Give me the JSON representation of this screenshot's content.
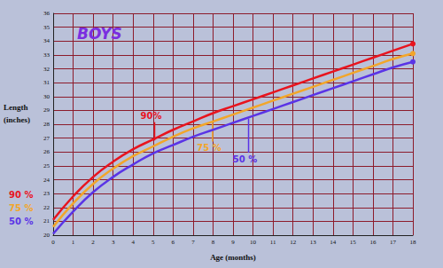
{
  "chart_data": {
    "type": "line",
    "title": "BOYS",
    "xlabel": "Age (months)",
    "ylabel": "Length (inches)",
    "x": [
      0,
      1,
      2,
      3,
      4,
      5,
      6,
      7,
      8,
      9,
      10,
      11,
      12,
      13,
      14,
      15,
      16,
      17,
      18
    ],
    "series": [
      {
        "name": "90 %",
        "color": "#e8141e",
        "values": [
          21.1,
          22.8,
          24.2,
          25.3,
          26.2,
          26.9,
          27.6,
          28.2,
          28.8,
          29.3,
          29.8,
          30.3,
          30.8,
          31.3,
          31.8,
          32.3,
          32.8,
          33.3,
          33.8
        ]
      },
      {
        "name": "75 %",
        "color": "#f2a62a",
        "values": [
          20.6,
          22.3,
          23.7,
          24.8,
          25.7,
          26.4,
          27.1,
          27.7,
          28.2,
          28.7,
          29.2,
          29.7,
          30.2,
          30.7,
          31.2,
          31.7,
          32.2,
          32.7,
          33.1
        ]
      },
      {
        "name": "50 %",
        "color": "#5a34e6",
        "values": [
          20.1,
          21.7,
          23.1,
          24.2,
          25.1,
          25.9,
          26.5,
          27.1,
          27.6,
          28.1,
          28.6,
          29.1,
          29.6,
          30.1,
          30.6,
          31.1,
          31.6,
          32.1,
          32.5
        ]
      }
    ],
    "annotations": [
      {
        "text": "90%",
        "series": "90 %",
        "x": 4.9,
        "y": 28.6
      },
      {
        "text": "75 %",
        "series": "75 %",
        "x": 7.8,
        "y": 26.3
      },
      {
        "text": "50 %",
        "series": "50 %",
        "x": 9.6,
        "y": 25.5
      }
    ],
    "xlim": [
      0,
      18
    ],
    "xticks": [
      0,
      1,
      2,
      3,
      4,
      5,
      6,
      7,
      8,
      9,
      10,
      11,
      12,
      13,
      14,
      15,
      16,
      17,
      18
    ],
    "ylim": [
      20,
      36
    ],
    "yticks": [
      20,
      21,
      22,
      23,
      24,
      25,
      26,
      27,
      28,
      29,
      30,
      31,
      32,
      33,
      34,
      35,
      36
    ],
    "grid": true,
    "legend": "left"
  }
}
